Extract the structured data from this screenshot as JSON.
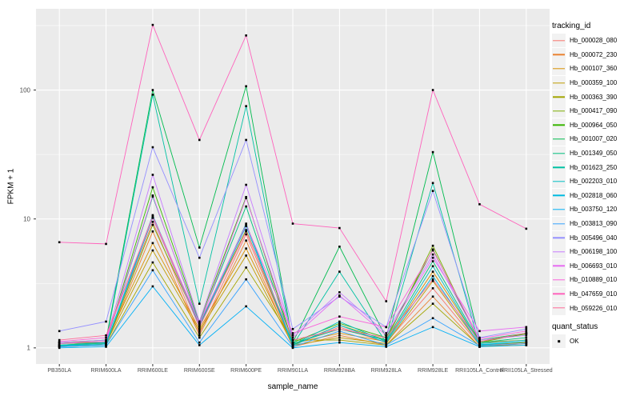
{
  "figure": {
    "colors": {
      "panel_bg": "#EBEBEB",
      "grid": "#FFFFFF",
      "axis_text": "#4D4D4D",
      "tick_mark": "#333333",
      "legend_key_bg": "#F2F2F2",
      "point": "#000000"
    }
  },
  "legend": {
    "tracking_title": "tracking_id",
    "quant_title": "quant_status",
    "quant_items": [
      {
        "label": "OK",
        "marker": "black-square"
      }
    ]
  },
  "chart_data": {
    "type": "line",
    "title": "",
    "xlabel": "sample_name",
    "ylabel": "FPKM + 1",
    "y_scale": "log10",
    "ylim": [
      0.75,
      425
    ],
    "grid": "major-and-minor-white-on-grey",
    "legend_position": "right",
    "point_marker": {
      "shape": "small-black-square",
      "legend_label": "OK"
    },
    "y_ticks": [
      {
        "label": "100",
        "value": 100
      },
      {
        "label": "10",
        "value": 10
      },
      {
        "label": "1",
        "value": 1
      }
    ],
    "y_minor_gridlines": [
      3.1623,
      31.623,
      316.23
    ],
    "categories": [
      "PB350LA",
      "RRIM600LA",
      "RRIM600LE",
      "RRIM600SE",
      "RRIM600PE",
      "RRIM901LA",
      "RRIM928BA",
      "RRIM928LA",
      "RRIM928LE",
      "RRII105LA_Control",
      "RRII105LA_Stressed"
    ],
    "series": [
      {
        "name": "Hb_000028_080",
        "color": "#F8766D",
        "values": [
          1.05,
          1.08,
          9.5,
          1.3,
          7.6,
          1.05,
          1.45,
          1.1,
          2.9,
          1.05,
          1.1
        ]
      },
      {
        "name": "Hb_000072_230",
        "color": "#EA8331",
        "values": [
          1.02,
          1.05,
          8.0,
          1.25,
          6.8,
          1.02,
          1.25,
          1.05,
          2.5,
          1.02,
          1.08
        ]
      },
      {
        "name": "Hb_000107_360",
        "color": "#D89000",
        "values": [
          1.1,
          1.12,
          6.5,
          1.4,
          5.9,
          1.08,
          1.3,
          1.12,
          3.9,
          1.1,
          1.15
        ]
      },
      {
        "name": "Hb_000359_100",
        "color": "#C09B00",
        "values": [
          1.05,
          1.08,
          5.7,
          1.35,
          5.2,
          1.05,
          1.2,
          1.08,
          3.3,
          1.06,
          1.1
        ]
      },
      {
        "name": "Hb_000363_390",
        "color": "#A3A500",
        "values": [
          1.02,
          1.05,
          4.6,
          1.2,
          4.2,
          1.15,
          1.15,
          1.05,
          2.2,
          1.03,
          1.05
        ]
      },
      {
        "name": "Hb_000417_090",
        "color": "#7CAE00",
        "values": [
          1.03,
          1.06,
          9.0,
          1.5,
          8.2,
          1.05,
          1.5,
          1.15,
          6.2,
          1.1,
          1.3
        ]
      },
      {
        "name": "Hb_000964_050",
        "color": "#39B600",
        "values": [
          1.08,
          1.1,
          17.6,
          1.6,
          14.8,
          1.1,
          1.55,
          1.2,
          5.8,
          1.12,
          1.28
        ]
      },
      {
        "name": "Hb_001007_020",
        "color": "#00BB4E",
        "values": [
          1.1,
          1.15,
          100,
          6.0,
          107,
          1.1,
          6.1,
          1.2,
          33,
          1.15,
          1.3
        ]
      },
      {
        "name": "Hb_001349_050",
        "color": "#00BF7D",
        "values": [
          1.05,
          1.1,
          14.9,
          1.55,
          12.5,
          1.08,
          1.4,
          1.15,
          4.7,
          1.1,
          1.2
        ]
      },
      {
        "name": "Hb_001623_250",
        "color": "#00C1A3",
        "values": [
          1.05,
          1.1,
          92,
          2.2,
          75,
          1.05,
          3.9,
          1.1,
          19,
          1.05,
          1.12
        ]
      },
      {
        "name": "Hb_002203_010",
        "color": "#00BFC4",
        "values": [
          1.04,
          1.08,
          10.7,
          1.5,
          9.2,
          1.06,
          1.6,
          1.12,
          4.3,
          1.08,
          1.15
        ]
      },
      {
        "name": "Hb_002818_060",
        "color": "#00BAE0",
        "values": [
          1.03,
          1.06,
          10.2,
          1.45,
          8.8,
          1.04,
          1.5,
          1.1,
          3.6,
          1.06,
          1.12
        ]
      },
      {
        "name": "Hb_003750_120",
        "color": "#00B0F6",
        "values": [
          1.0,
          1.02,
          3.0,
          1.05,
          2.1,
          1.0,
          1.1,
          1.02,
          1.45,
          1.02,
          1.05
        ]
      },
      {
        "name": "Hb_003813_090",
        "color": "#35A2FF",
        "values": [
          1.02,
          1.05,
          4.0,
          1.1,
          3.4,
          1.02,
          1.35,
          1.05,
          1.7,
          1.04,
          1.08
        ]
      },
      {
        "name": "Hb_005496_040",
        "color": "#9590FF",
        "values": [
          1.35,
          1.6,
          36,
          5.0,
          41,
          1.4,
          2.5,
          1.45,
          16.5,
          1.2,
          1.4
        ]
      },
      {
        "name": "Hb_006198_100",
        "color": "#C77CFF",
        "values": [
          1.1,
          1.15,
          22,
          1.6,
          18.4,
          1.25,
          2.7,
          1.3,
          5.3,
          1.15,
          1.25
        ]
      },
      {
        "name": "Hb_006693_010",
        "color": "#E76BF3",
        "values": [
          1.08,
          1.12,
          15.2,
          1.5,
          14.5,
          1.2,
          2.55,
          1.25,
          5.0,
          1.35,
          1.45
        ]
      },
      {
        "name": "Hb_010889_010",
        "color": "#FA62DB",
        "values": [
          1.12,
          1.2,
          10.5,
          1.55,
          9.0,
          1.3,
          1.75,
          1.45,
          5.7,
          1.18,
          1.35
        ]
      },
      {
        "name": "Hb_047659_010",
        "color": "#FF62BC",
        "values": [
          6.6,
          6.4,
          320,
          41,
          265,
          9.2,
          8.5,
          2.3,
          100,
          13,
          8.4
        ]
      },
      {
        "name": "Hb_059226_010",
        "color": "#FF6A98",
        "values": [
          1.15,
          1.25,
          10.3,
          1.45,
          8.0,
          1.15,
          1.4,
          1.2,
          3.4,
          1.12,
          1.3
        ]
      }
    ]
  }
}
